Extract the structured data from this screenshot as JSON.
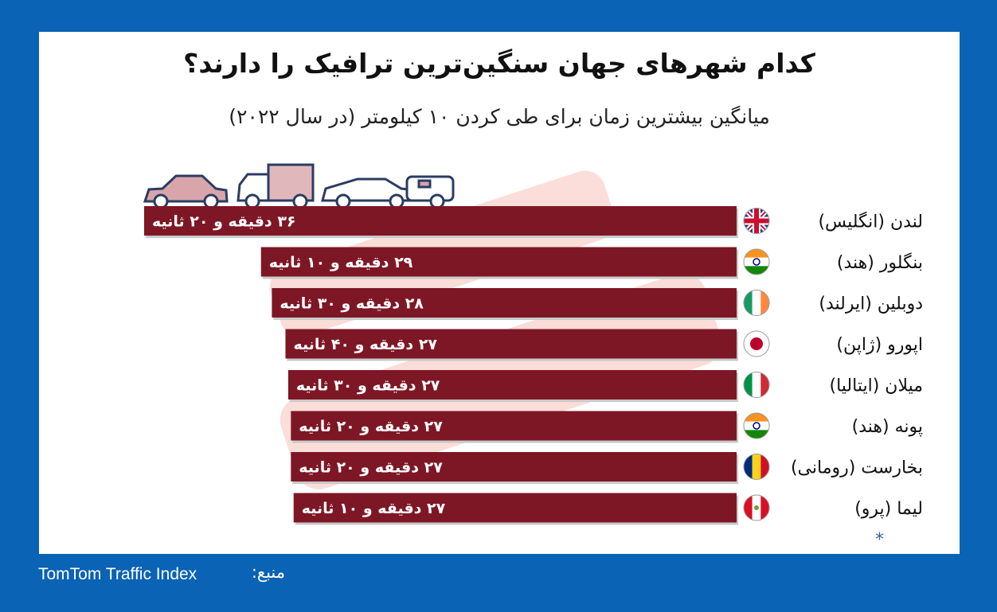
{
  "title": "کدام شهرهای جهان سنگین‌ترین ترافیک را دارند؟",
  "subtitle": "میانگین بیشترین زمان برای طی کردن ۱۰ کیلومتر (در سال ۲۰۲۲)",
  "footnote": "*",
  "source": {
    "label": "منبع:",
    "value": "TomTom Traffic Index"
  },
  "colors": {
    "background": "#0a63b4",
    "bar": "#7e1725",
    "card": "#ffffff"
  },
  "chart_data": {
    "type": "bar",
    "orientation": "horizontal",
    "value_unit": "seconds",
    "categories": [
      "لندن (انگلیس)",
      "بنگلور (هند)",
      "دوبلین (ایرلند)",
      "اپورو (ژاپن)",
      "میلان (ایتالیا)",
      "پونه (هند)",
      "بخارست (رومانی)",
      "لیما (پرو)"
    ],
    "flags": [
      "uk",
      "india",
      "ireland",
      "japan",
      "italy",
      "india",
      "romania",
      "peru"
    ],
    "values": [
      2180,
      1750,
      1710,
      1660,
      1650,
      1640,
      1640,
      1630
    ],
    "labels": [
      "۳۶ دقیقه و ۲۰ ثانیه",
      "۲۹ دقیقه و ۱۰ ثانیه",
      "۲۸ دقیقه و ۳۰ ثانیه",
      "۲۷ دقیقه و ۴۰ ثانیه",
      "۲۷ دقیقه و ۳۰ ثانیه",
      "۲۷ دقیقه و ۲۰ ثانیه",
      "۲۷ دقیقه و ۲۰ ثانیه",
      "۲۷ دقیقه و ۱۰ ثانیه"
    ],
    "xlim": [
      0,
      2180
    ]
  }
}
